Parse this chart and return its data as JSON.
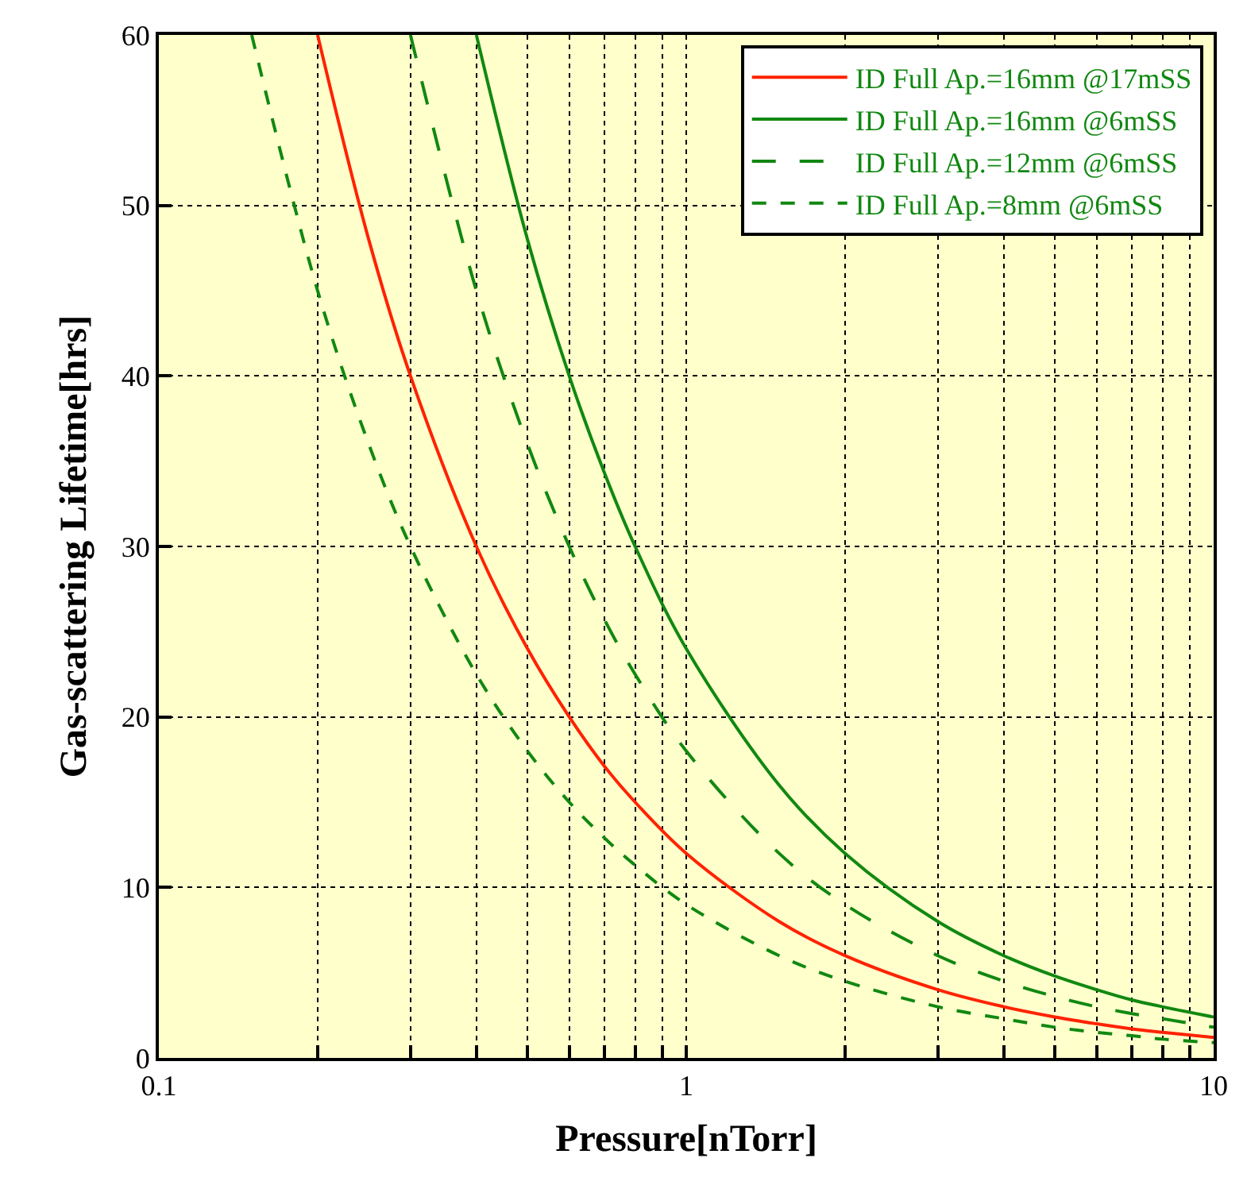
{
  "chart_data": {
    "type": "line",
    "xlabel": "Pressure[nTorr]",
    "ylabel": "Gas-scattering Lifetime[hrs]",
    "log": "x",
    "xlim": [
      0.1,
      10
    ],
    "ylim": [
      0,
      60
    ],
    "xticks": [
      0.1,
      {
        "value": 0.2,
        "label": null
      },
      {
        "value": 0.3,
        "label": null
      },
      {
        "value": 0.4,
        "label": null
      },
      {
        "value": 0.5,
        "label": null
      },
      {
        "value": 0.6,
        "label": null
      },
      {
        "value": 0.7,
        "label": null
      },
      {
        "value": 0.8,
        "label": null
      },
      {
        "value": 0.9,
        "label": null
      },
      1,
      {
        "value": 2,
        "label": null
      },
      {
        "value": 3,
        "label": null
      },
      {
        "value": 4,
        "label": null
      },
      {
        "value": 5,
        "label": null
      },
      {
        "value": 6,
        "label": null
      },
      {
        "value": 7,
        "label": null
      },
      {
        "value": 8,
        "label": null
      },
      {
        "value": 9,
        "label": null
      },
      10
    ],
    "yticks": [
      0,
      10,
      20,
      30,
      40,
      50,
      60
    ],
    "grid": true,
    "legend": "top right",
    "series": [
      {
        "name": "ID Full Ap.=16mm @17mSS",
        "color": "#ff2200",
        "line_style": "solid",
        "x": [
          0.2,
          0.25,
          0.3,
          0.4,
          0.5,
          0.6,
          0.7,
          0.8,
          1,
          1.5,
          2,
          3,
          4,
          5,
          6,
          7,
          8,
          10
        ],
        "values": [
          60,
          48,
          40,
          30,
          24,
          20,
          17.1,
          15,
          12,
          8,
          6,
          4,
          3,
          2.4,
          2,
          1.7,
          1.5,
          1.2
        ]
      },
      {
        "name": "ID Full Ap.=16mm @6mSS",
        "color": "#118811",
        "line_style": "solid",
        "x": [
          0.4,
          0.5,
          0.6,
          0.7,
          0.8,
          1,
          1.5,
          2,
          3,
          4,
          5,
          6,
          7,
          8,
          10
        ],
        "values": [
          60,
          48,
          40,
          34.3,
          30,
          24,
          16,
          12,
          8,
          6,
          4.8,
          4,
          3.4,
          3,
          2.4
        ]
      },
      {
        "name": "ID Full Ap.=12mm @6mSS",
        "color": "#118811",
        "line_style": "dashed",
        "x": [
          0.3,
          0.4,
          0.5,
          0.6,
          0.7,
          0.8,
          1,
          1.5,
          2,
          3,
          4,
          5,
          6,
          7,
          8,
          10
        ],
        "values": [
          60,
          45,
          36,
          30,
          25.7,
          22.5,
          18,
          12,
          9,
          6,
          4.5,
          3.6,
          3,
          2.6,
          2.3,
          1.8
        ]
      },
      {
        "name": "ID Full Ap.=8mm @6mSS",
        "color": "#118811",
        "line_style": "dotted",
        "x": [
          0.15,
          0.2,
          0.25,
          0.3,
          0.4,
          0.5,
          0.6,
          0.7,
          0.8,
          1,
          1.5,
          2,
          3,
          4,
          5,
          6,
          7,
          8,
          10
        ],
        "values": [
          60,
          45,
          36,
          30,
          22.5,
          18,
          15,
          12.9,
          11.3,
          9,
          6,
          4.5,
          3,
          2.3,
          1.8,
          1.5,
          1.3,
          1.1,
          0.9
        ]
      }
    ]
  }
}
